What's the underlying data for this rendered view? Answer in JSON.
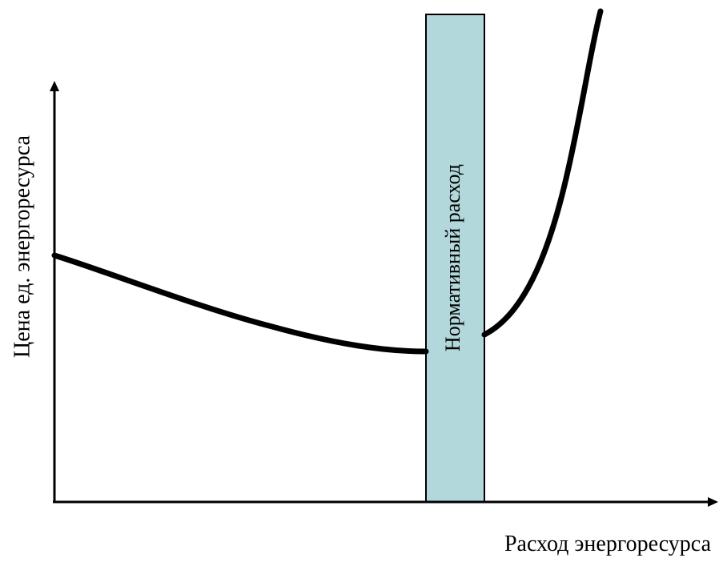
{
  "diagram": {
    "y_axis_label": "Цена ед. энергоресурса",
    "x_axis_label": "Расход энергоресурса",
    "normative_band_label": "Нормативный расход",
    "colors": {
      "curve": "#000000",
      "axes": "#000000",
      "band_fill": "#b2d8db",
      "band_stroke": "#000000",
      "background": "#ffffff"
    }
  }
}
